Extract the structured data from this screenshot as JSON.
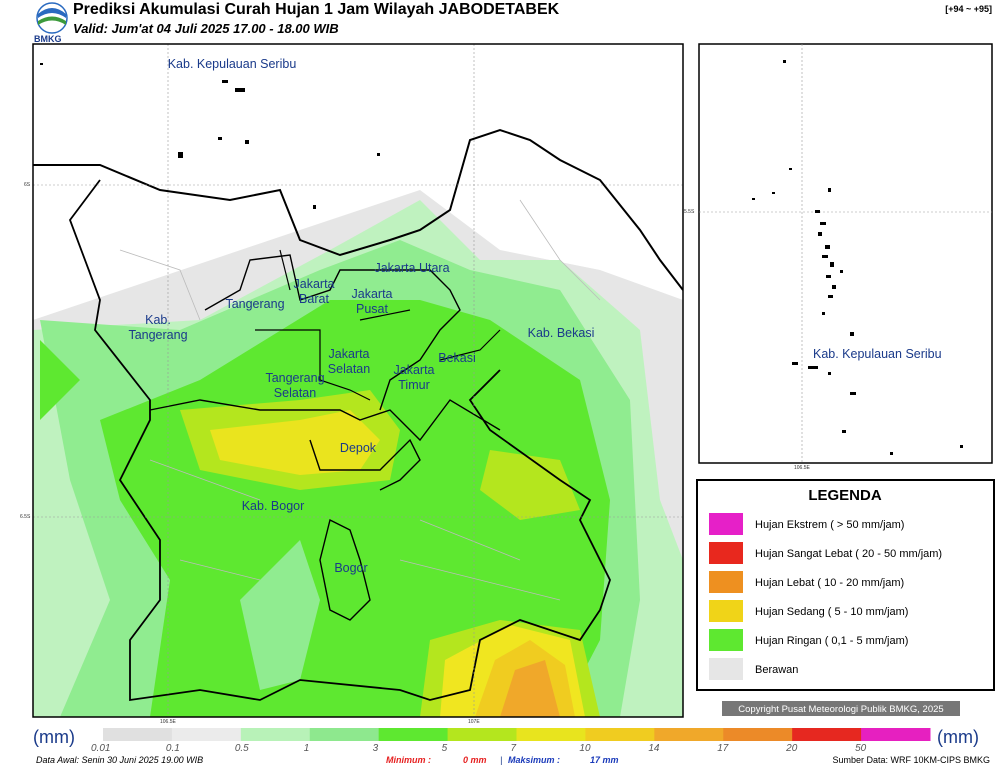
{
  "header": {
    "logo_text": "BMKG",
    "title": "Prediksi Akumulasi Curah Hujan 1 Jam Wilayah JABODETABEK",
    "subtitle": "Valid: Jum'at 04 Juli 2025 17.00 - 18.00 WIB",
    "corner": "[+94 ~ +95]"
  },
  "map": {
    "labels": [
      [
        "Kab. Kepulauan Seribu"
      ],
      [
        "Jakarta Utara"
      ],
      [
        "Jakarta",
        "Barat"
      ],
      [
        "Jakarta",
        "Pusat"
      ],
      [
        "Tangerang"
      ],
      [
        "Kab.",
        "Tangerang"
      ],
      [
        "Kab. Bekasi"
      ],
      [
        "Jakarta",
        "Selatan"
      ],
      [
        "Bekasi"
      ],
      [
        "Jakarta",
        "Timur"
      ],
      [
        "Tangerang",
        "Selatan"
      ],
      [
        "Depok"
      ],
      [
        "Kab. Bogor"
      ],
      [
        "Bogor"
      ]
    ],
    "grid_labels": [
      "6S",
      "6.5S",
      "106.5E",
      "107E"
    ]
  },
  "inset": {
    "label": "Kab. Kepulauan Seribu",
    "grid_labels": [
      "5.5S",
      "106.5E"
    ]
  },
  "legend": {
    "title": "LEGENDA",
    "items": [
      {
        "label": "Hujan Ekstrem ( > 50 mm/jam)",
        "color": "#e620c8"
      },
      {
        "label": "Hujan Sangat Lebat ( 20 - 50 mm/jam)",
        "color": "#e8281e"
      },
      {
        "label": "Hujan Lebat ( 10 - 20 mm/jam)",
        "color": "#ee9020"
      },
      {
        "label": "Hujan Sedang ( 5 - 10 mm/jam)",
        "color": "#f0d418"
      },
      {
        "label": "Hujan Ringan ( 0,1 - 5 mm/jam)",
        "color": "#5ee830"
      },
      {
        "label": "Berawan",
        "color": "#e6e6e6"
      }
    ]
  },
  "copyright": "Copyright Pusat Meteorologi Publik BMKG, 2025",
  "colorbar": {
    "unit": "(mm)",
    "ticks": [
      0.01,
      0.1,
      0.5,
      1,
      3,
      5,
      7,
      10,
      14,
      17,
      20,
      50
    ],
    "colors": [
      "#e0e0e0",
      "#ebebeb",
      "#b8f2b8",
      "#8ee88e",
      "#5ee830",
      "#b4e61e",
      "#e8e41e",
      "#f0cc20",
      "#f0a82a",
      "#ec8a28",
      "#e62820",
      "#e620c0"
    ]
  },
  "footer": {
    "data_awal": "Data Awal: Senin 30 Juni 2025 19.00 WIB",
    "min_label": "Minimum :",
    "min_value": "0 mm",
    "sep": "|",
    "max_label": "Maksimum :",
    "max_value": "17 mm",
    "source": "Sumber Data: WRF 10KM-CIPS BMKG"
  }
}
